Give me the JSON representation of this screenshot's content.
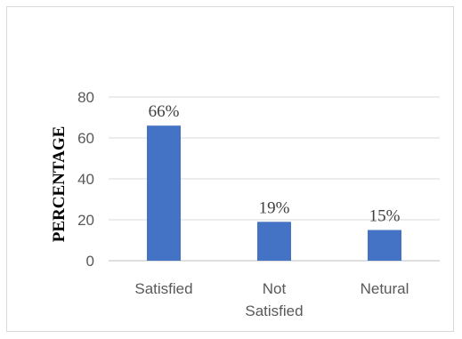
{
  "chart_data": {
    "type": "bar",
    "title": "",
    "xlabel": "",
    "ylabel": "PERCENTAGE",
    "categories": [
      [
        "Satisfied"
      ],
      [
        "Not",
        "Satisfied"
      ],
      [
        "Netural"
      ]
    ],
    "values": [
      66,
      19,
      15
    ],
    "data_labels": [
      "66%",
      "19%",
      "15%"
    ],
    "ylim": [
      0,
      80
    ],
    "yticks": [
      0,
      20,
      40,
      60,
      80
    ],
    "grid": true,
    "legend": "none",
    "colors": {
      "bar": "#4472C4",
      "grid": "#d9d9d9",
      "axis": "#bfbfbf"
    }
  }
}
